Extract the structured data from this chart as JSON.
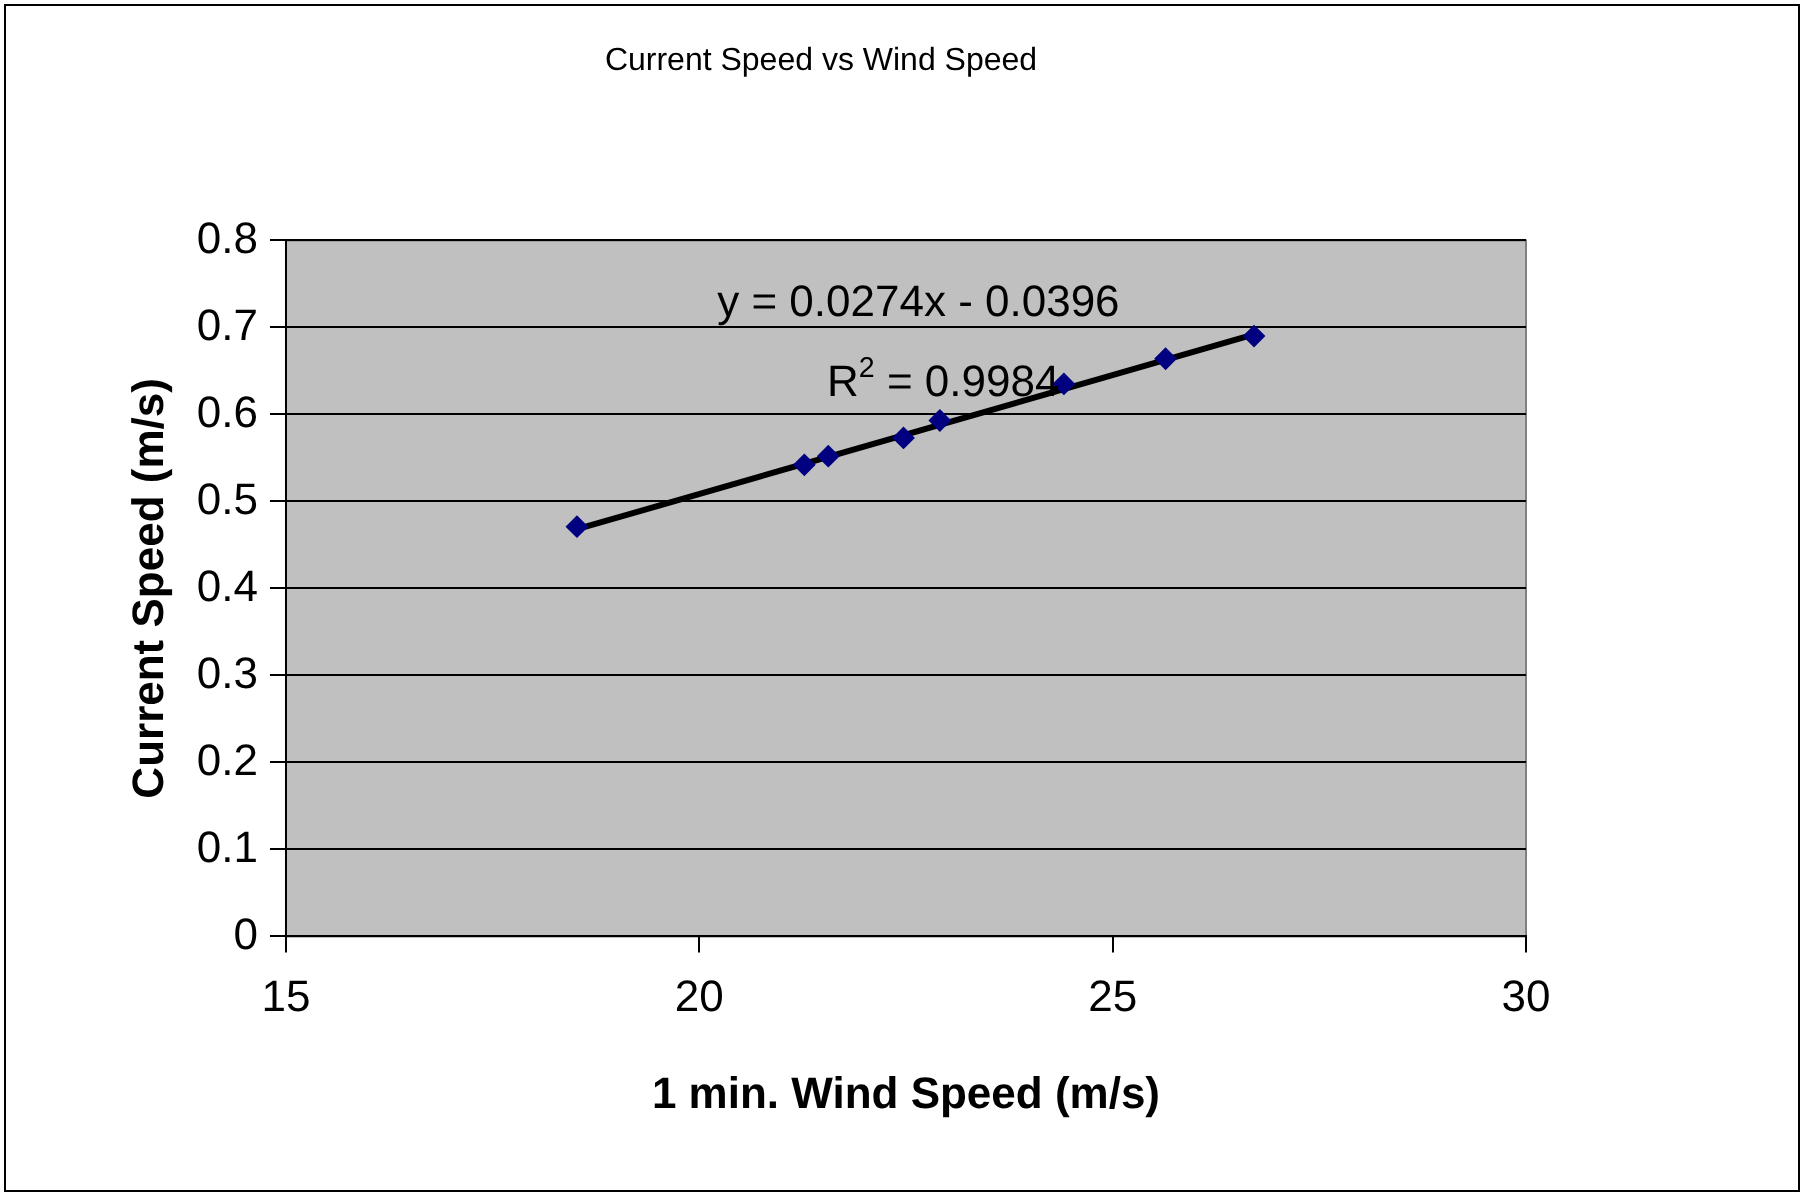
{
  "chart_data": {
    "type": "scatter",
    "title": "Current Speed vs Wind Speed",
    "xlabel": "1 min. Wind Speed (m/s)",
    "ylabel": "Current Speed (m/s)",
    "series": [
      {
        "color": "#000080",
        "x": [
          18.52,
          21.27,
          21.56,
          22.47,
          22.91,
          24.41,
          25.64,
          26.71
        ],
        "values": [
          0.471,
          0.542,
          0.552,
          0.573,
          0.593,
          0.635,
          0.664,
          0.69
        ]
      },
      {
        "type": "line",
        "marker": "none",
        "color": "#000000",
        "x": [
          18.52,
          26.71
        ],
        "values": [
          0.468,
          0.692
        ]
      }
    ],
    "xlim": [
      15,
      30
    ],
    "xticks": [
      15,
      20,
      25,
      30
    ],
    "ylim": [
      0,
      0.8
    ],
    "yticks": [
      0,
      0.1,
      0.2,
      0.3,
      0.4,
      0.5,
      0.6,
      0.7,
      0.8
    ],
    "grid": "y",
    "marker": "diamond",
    "legend": false,
    "annotations": [
      "y = 0.0274x - 0.0396",
      "R$^{2}$ = 0.9984"
    ]
  }
}
